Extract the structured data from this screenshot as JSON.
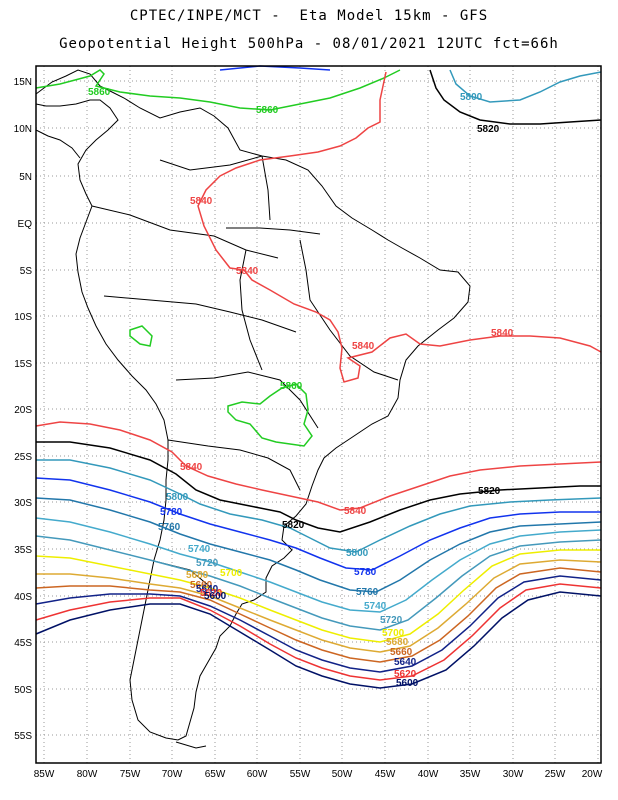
{
  "header": {
    "line1": "CPTEC/INPE/MCT -  Eta Model 15km - GFS",
    "line2": "Geopotential Height 500hPa - 08/01/2021 12UTC fct=66h"
  },
  "axes": {
    "lat_labels": [
      "15N",
      "10N",
      "5N",
      "EQ",
      "5S",
      "10S",
      "15S",
      "20S",
      "25S",
      "30S",
      "35S",
      "40S",
      "45S",
      "50S",
      "55S"
    ],
    "lon_labels": [
      "85W",
      "80W",
      "75W",
      "70W",
      "65W",
      "60W",
      "55W",
      "50W",
      "45W",
      "40W",
      "35W",
      "30W",
      "25W",
      "20W"
    ],
    "grid": "dotted"
  },
  "colors": {
    "c5860": "#22cc22",
    "c5840": "#ee4444",
    "c5820": "#000000",
    "c5800": "#3399bb",
    "c5780": "#1133ee",
    "c5760": "#2277aa",
    "c5740": "#44aacc",
    "c5720": "#4499bb",
    "c5700": "#eeee00",
    "c5680": "#ddaa33",
    "c5660": "#cc6622",
    "c5640": "#112288",
    "c5620": "#ee3333",
    "c5600": "#001166"
  },
  "contour_labels": {
    "l5860_a": "5860",
    "l5860_b": "5860",
    "l5860_c": "5860",
    "l5840_a": "5840",
    "l5840_b": "5840",
    "l5840_c": "5840",
    "l5840_d": "5840",
    "l5840_e": "5840",
    "l5840_f": "5840",
    "l5820_a": "5820",
    "l5820_b": "5820",
    "l5820_c": "5820",
    "l5800_a": "5800",
    "l5800_b": "5800",
    "l5800_c": "5800",
    "l5780_a": "5780",
    "l5780_b": "5780",
    "l5760_a": "5760",
    "l5760_b": "5760",
    "l5740_a": "5740",
    "l5740_b": "5740",
    "l5720_a": "5720",
    "l5720_b": "5720",
    "l5700_a": "5700",
    "l5700_b": "5700",
    "l5680_a": "5680",
    "l5680_b": "5680",
    "l5660_a": "5660",
    "l5660_b": "5660",
    "l5640_a": "5640",
    "l5640_b": "5640",
    "l5620_a": "5620",
    "l5620_b": "5620",
    "l5600_a": "5600",
    "l5600_b": "5600"
  }
}
